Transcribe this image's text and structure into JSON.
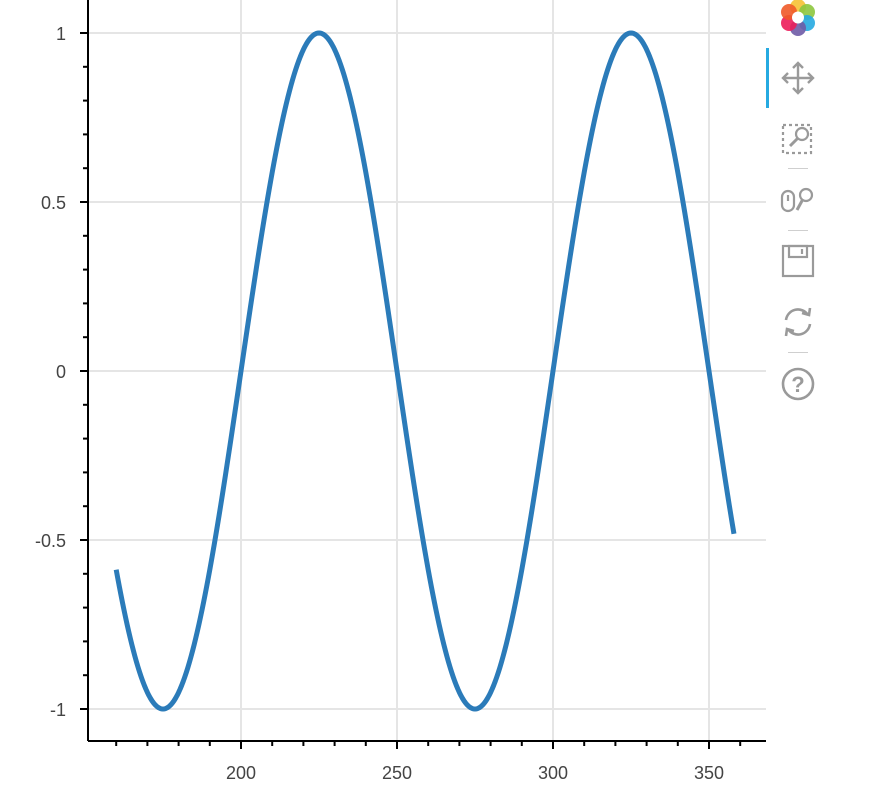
{
  "chart_data": {
    "type": "line",
    "series": [
      {
        "function": "sin(2*pi*(x-200)/100)",
        "x_start": 160,
        "x_end": 358,
        "color": "#2b7bb9"
      }
    ],
    "xticks": [
      200,
      250,
      300,
      350
    ],
    "xtick_labels": [
      "200",
      "250",
      "300",
      "350"
    ],
    "yticks": [
      1,
      0.5,
      0,
      -0.5,
      -1
    ],
    "ytick_labels": [
      "1",
      "0.5",
      "0",
      "-0.5",
      "-1"
    ],
    "xlim": [
      145,
      362
    ],
    "ylim": [
      -1.1,
      1.1
    ],
    "grid": true
  },
  "toolbar": {
    "tools": [
      "bokeh-logo",
      "pan-tool",
      "box-zoom-tool",
      "wheel-zoom-tool",
      "save-tool",
      "reset-tool",
      "help-tool"
    ],
    "active_tool": "pan-tool"
  }
}
